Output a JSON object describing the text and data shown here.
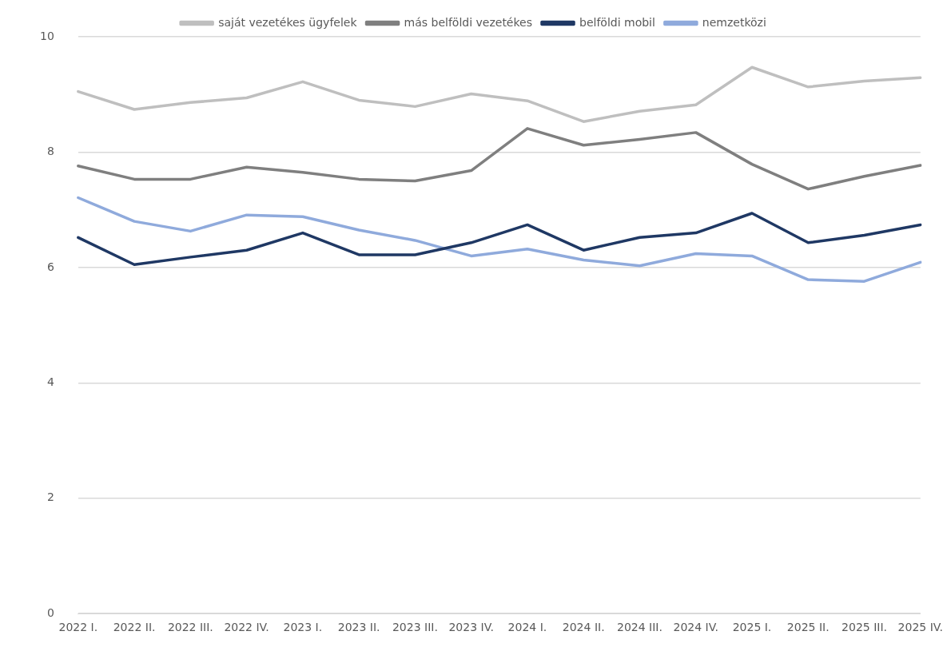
{
  "chart_data": {
    "type": "line",
    "categories": [
      "2022 I.",
      "2022 II.",
      "2022 III.",
      "2022 IV.",
      "2023 I.",
      "2023 II.",
      "2023 III.",
      "2023 IV.",
      "2024 I.",
      "2024 II.",
      "2024 III.",
      "2024 IV.",
      "2025 I.",
      "2025 II.",
      "2025 III.",
      "2025 IV."
    ],
    "series": [
      {
        "name": "saját vezetékes ügyfelek",
        "color": "#bfbfbf",
        "values": [
          9.05,
          8.74,
          8.86,
          8.94,
          9.22,
          8.9,
          8.79,
          9.01,
          8.89,
          8.53,
          8.71,
          8.82,
          9.47,
          9.13,
          9.23,
          9.29
        ]
      },
      {
        "name": "más belföldi vezetékes",
        "color": "#7f7f7f",
        "values": [
          7.76,
          7.53,
          7.53,
          7.74,
          7.65,
          7.53,
          7.5,
          7.68,
          8.41,
          8.12,
          8.22,
          8.34,
          7.79,
          7.36,
          7.58,
          7.77
        ]
      },
      {
        "name": "belföldi mobil",
        "color": "#1f3864",
        "values": [
          6.52,
          6.05,
          6.18,
          6.3,
          6.6,
          6.22,
          6.22,
          6.43,
          6.74,
          6.3,
          6.52,
          6.6,
          6.94,
          6.43,
          6.56,
          6.74
        ]
      },
      {
        "name": "nemzetközi",
        "color": "#8faadc",
        "values": [
          7.21,
          6.8,
          6.63,
          6.91,
          6.88,
          6.65,
          6.47,
          6.2,
          6.32,
          6.13,
          6.03,
          6.24,
          6.2,
          5.79,
          5.76,
          6.09
        ]
      }
    ],
    "ylim": [
      0,
      10
    ],
    "yticks": [
      0,
      2,
      4,
      6,
      8,
      10
    ],
    "grid": "y",
    "legend": "top",
    "marker": "none",
    "line_style": "solid"
  }
}
